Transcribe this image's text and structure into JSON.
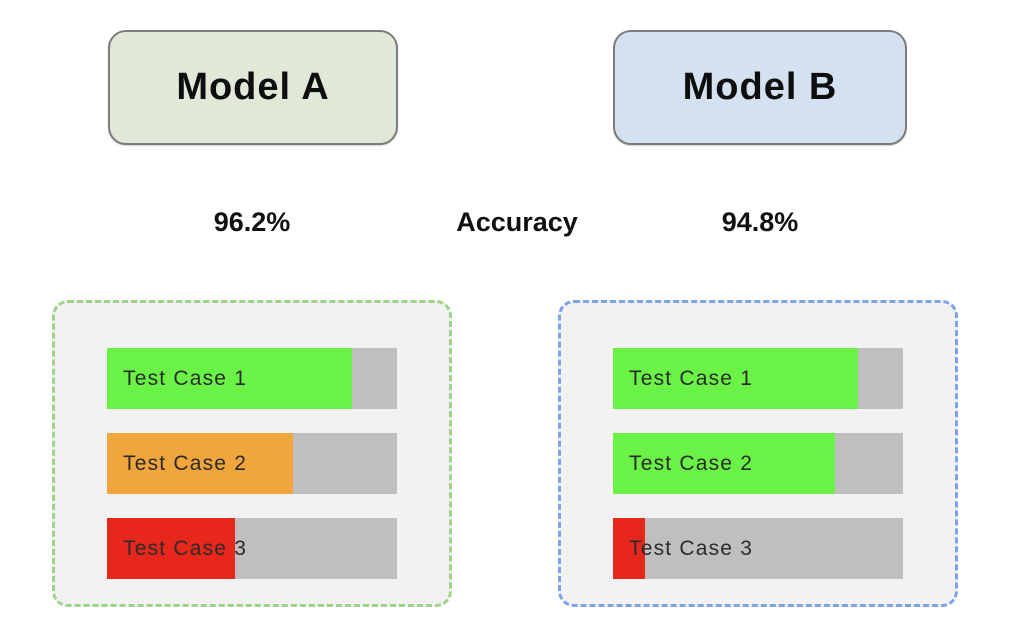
{
  "center_label": "Accuracy",
  "theme": {
    "page_bg": "#ffffff",
    "track_color": "#bfbfbf",
    "panel_bg": "#f2f2f3",
    "box_border": "#7c7c7c"
  },
  "models": [
    {
      "name": "Model A",
      "accuracy": "96.2%",
      "box_bg": "#e0e9d8",
      "panel_border": "#9fd387",
      "test_cases": [
        {
          "label": "Test Case 1",
          "fill": "84.5%",
          "color": "#6bf246"
        },
        {
          "label": "Test Case 2",
          "fill": "64%",
          "color": "#f1a53d"
        },
        {
          "label": "Test Case 3",
          "fill": "44%",
          "color": "#e7271c"
        }
      ]
    },
    {
      "name": "Model B",
      "accuracy": "94.8%",
      "box_bg": "#d3e1f0",
      "panel_border": "#7ea3e6",
      "test_cases": [
        {
          "label": "Test Case 1",
          "fill": "84.5%",
          "color": "#6bf246"
        },
        {
          "label": "Test Case 2",
          "fill": "76.5%",
          "color": "#6bf246"
        },
        {
          "label": "Test Case 3",
          "fill": "11%",
          "color": "#e7271c"
        }
      ]
    }
  ]
}
